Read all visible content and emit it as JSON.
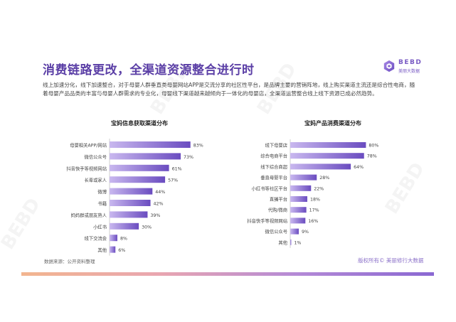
{
  "page": {
    "title": "消费链路更改，全渠道资源整合进行时",
    "intro": "线上加速分化，线下加速整合，对于母婴人群垂直类母婴网站APP是交流分享的社区性平台，是品牌主要的营销阵地，线上购买渠道主流还是综合性电商，随着母婴产品品类的丰富与母婴人群需求的专业化，母婴线下渠道越来越倾向于一体化的母婴店，全渠道运营整合线上线下资源已成必然趋势。",
    "source": "数据来源：公开资料整理",
    "copyright": "版权所有© 美丽修行大数据",
    "logo_en": "BEBD",
    "logo_cn": "美丽大数据",
    "watermark_en": "BEBD",
    "watermark_cn": "美丽大数据"
  },
  "colors": {
    "title": "#5b3fa6",
    "bar_start": "#c9b8ef",
    "bar_end": "#6a4cc0",
    "gradient_bar": [
      "#f2b58f",
      "#e9a6b0",
      "#b48ad6",
      "#8a68d2"
    ]
  },
  "chart_data": [
    {
      "type": "bar",
      "orientation": "horizontal",
      "title": "宝妈信息获取渠道分布",
      "categories": [
        "母婴相关APP/网站",
        "微信公众号",
        "抖音快手等视频网站",
        "长辈或家人",
        "微博",
        "书籍",
        "妈妈群或朋友熟人",
        "小红书",
        "线下交流会",
        "其他"
      ],
      "values": [
        83,
        73,
        61,
        57,
        44,
        42,
        39,
        30,
        8,
        6
      ],
      "value_suffix": "%",
      "xlim": [
        0,
        100
      ],
      "grid": false
    },
    {
      "type": "bar",
      "orientation": "horizontal",
      "title": "宝妈产品消费渠道分布",
      "categories": [
        "线下母婴店",
        "综合电商平台",
        "线下综合商超",
        "垂直母婴平台",
        "小红书等社区平台",
        "直播平台",
        "代购/微商",
        "抖音快手等视频网站",
        "微信公众号",
        "其他"
      ],
      "values": [
        80,
        78,
        64,
        28,
        22,
        18,
        17,
        16,
        9,
        1
      ],
      "value_suffix": "%",
      "xlim": [
        0,
        100
      ],
      "grid": false
    }
  ]
}
